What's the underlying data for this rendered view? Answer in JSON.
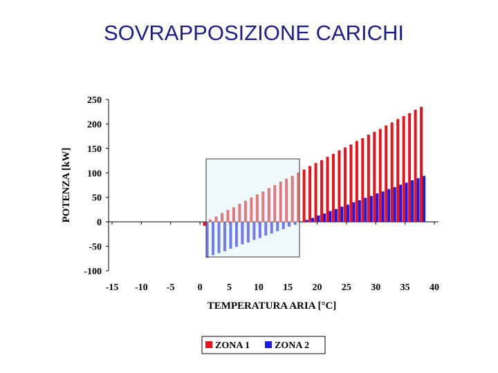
{
  "chart_data": {
    "type": "bar",
    "title": "SOVRAPPOSIZIONE CARICHI",
    "x_label": "TEMPERATURA ARIA [°C]",
    "y_label": "POTENZA [kW]",
    "x": [
      1,
      2,
      3,
      4,
      5,
      6,
      7,
      8,
      9,
      10,
      11,
      12,
      13,
      14,
      15,
      16,
      17,
      18,
      19,
      20,
      21,
      22,
      23,
      24,
      25,
      26,
      27,
      28,
      29,
      30,
      31,
      32,
      33,
      34,
      35,
      36,
      37,
      38
    ],
    "series": [
      {
        "name": "ZONA 1",
        "color": "#e8141b",
        "values": [
          -8,
          5,
          11,
          18,
          24,
          30,
          37,
          43,
          50,
          56,
          62,
          69,
          75,
          82,
          88,
          94,
          101,
          107,
          114,
          120,
          126,
          133,
          139,
          146,
          152,
          158,
          165,
          171,
          178,
          184,
          190,
          197,
          203,
          210,
          216,
          222,
          229,
          235
        ]
      },
      {
        "name": "ZONA 2",
        "color": "#1a1ae6",
        "values": [
          -73,
          -68,
          -64,
          -60,
          -55,
          -51,
          -46,
          -42,
          -37,
          -33,
          -28,
          -24,
          -19,
          -15,
          -10,
          -6,
          -1,
          4,
          8,
          13,
          17,
          22,
          26,
          31,
          35,
          40,
          44,
          49,
          53,
          58,
          62,
          67,
          71,
          76,
          80,
          85,
          89,
          94
        ]
      }
    ],
    "xlim": [
      -15,
      40
    ],
    "xticks": [
      -15,
      -10,
      -5,
      0,
      5,
      10,
      15,
      20,
      25,
      30,
      35,
      40
    ],
    "ylim": [
      -100,
      250
    ],
    "yticks": [
      -100,
      -50,
      0,
      50,
      100,
      150,
      200,
      250
    ],
    "legend": "bottom"
  }
}
